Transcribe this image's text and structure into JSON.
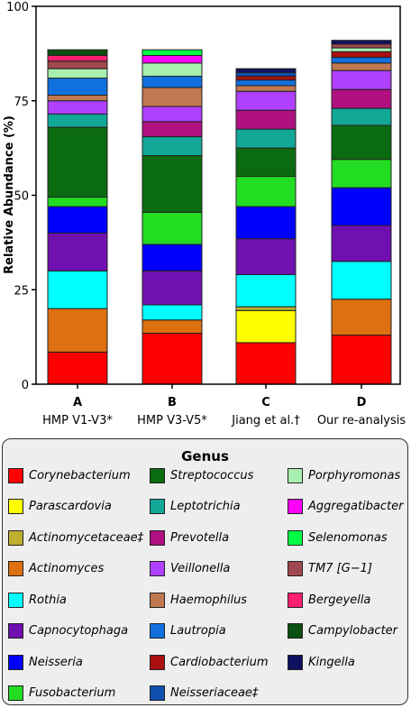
{
  "chart_data": {
    "type": "bar",
    "stacked": true,
    "ylabel": "Relative Abundance (%)",
    "ylim": [
      0,
      100
    ],
    "yticks": [
      "0",
      "25",
      "50",
      "75",
      "100"
    ],
    "categories": [
      {
        "letter": "A",
        "sub": "HMP V1-V3*"
      },
      {
        "letter": "B",
        "sub": "HMP V3-V5*"
      },
      {
        "letter": "C",
        "sub": "Jiang et al.†"
      },
      {
        "letter": "D",
        "sub": "Our re-analysis"
      }
    ],
    "series": [
      {
        "name": "Corynebacterium",
        "color": "#ff0000",
        "values": [
          8.5,
          13.5,
          11,
          13
        ]
      },
      {
        "name": "Parascardovia",
        "color": "#ffff00",
        "values": [
          0,
          0,
          8.5,
          0
        ]
      },
      {
        "name": "Actinomycetaceae‡",
        "color": "#bfb030",
        "values": [
          0,
          0,
          1,
          0
        ]
      },
      {
        "name": "Actinomyces",
        "color": "#dd7010",
        "values": [
          11.5,
          3.5,
          0,
          9.5
        ]
      },
      {
        "name": "Rothia",
        "color": "#00ffff",
        "values": [
          10,
          4,
          8.5,
          10
        ]
      },
      {
        "name": "Capnocytophaga",
        "color": "#7010b0",
        "values": [
          10,
          9,
          9.5,
          9.5
        ]
      },
      {
        "name": "Neisseria",
        "color": "#0000ff",
        "values": [
          7,
          7,
          8.5,
          10
        ]
      },
      {
        "name": "Fusobacterium",
        "color": "#22dd22",
        "values": [
          2.5,
          8.5,
          8,
          7.5
        ]
      },
      {
        "name": "Streptococcus",
        "color": "#0b6b10",
        "values": [
          18.5,
          15,
          7.5,
          9
        ]
      },
      {
        "name": "Leptotrichia",
        "color": "#12a898",
        "values": [
          3.5,
          5,
          5,
          4.5
        ]
      },
      {
        "name": "Prevotella",
        "color": "#b01080",
        "values": [
          0,
          4,
          5,
          5
        ]
      },
      {
        "name": "Veillonella",
        "color": "#b040ff",
        "values": [
          3.5,
          4,
          5,
          5
        ]
      },
      {
        "name": "Haemophilus",
        "color": "#c07850",
        "values": [
          1.5,
          5,
          1.5,
          2
        ]
      },
      {
        "name": "Lautropia",
        "color": "#1070e0",
        "values": [
          4.5,
          3,
          1.5,
          1.5
        ]
      },
      {
        "name": "Cardiobacterium",
        "color": "#aa1010",
        "values": [
          0,
          0,
          1,
          1.5
        ]
      },
      {
        "name": "Neisseriaceae‡",
        "color": "#1050b0",
        "values": [
          0,
          0,
          1,
          0
        ]
      },
      {
        "name": "Porphyromonas",
        "color": "#a8f0b0",
        "values": [
          2.5,
          3.5,
          0,
          1
        ]
      },
      {
        "name": "Aggregatibacter",
        "color": "#ff00ff",
        "values": [
          0,
          2,
          0,
          0
        ]
      },
      {
        "name": "Selenomonas",
        "color": "#00ff44",
        "values": [
          0,
          1.5,
          0,
          0
        ]
      },
      {
        "name": "TM7 [G−1]",
        "color": "#a04850",
        "values": [
          2,
          0,
          0,
          1
        ]
      },
      {
        "name": "Bergeyella",
        "color": "#ff2070",
        "values": [
          1.5,
          0,
          0,
          0
        ]
      },
      {
        "name": "Campylobacter",
        "color": "#0a5010",
        "values": [
          1.5,
          0,
          0,
          0
        ]
      },
      {
        "name": "Kingella",
        "color": "#101060",
        "values": [
          0,
          0,
          1,
          1
        ]
      }
    ],
    "legend": {
      "title": "Genus",
      "placement": "below",
      "columns": [
        [
          "Corynebacterium",
          "Parascardovia",
          "Actinomycetaceae‡",
          "Actinomyces",
          "Rothia",
          "Capnocytophaga",
          "Neisseria",
          "Fusobacterium"
        ],
        [
          "Streptococcus",
          "Leptotrichia",
          "Prevotella",
          "Veillonella",
          "Haemophilus",
          "Lautropia",
          "Cardiobacterium",
          "Neisseriaceae‡"
        ],
        [
          "Porphyromonas",
          "Aggregatibacter",
          "Selenomonas",
          "TM7 [G−1]",
          "Bergeyella",
          "Campylobacter",
          "Kingella"
        ]
      ]
    }
  }
}
